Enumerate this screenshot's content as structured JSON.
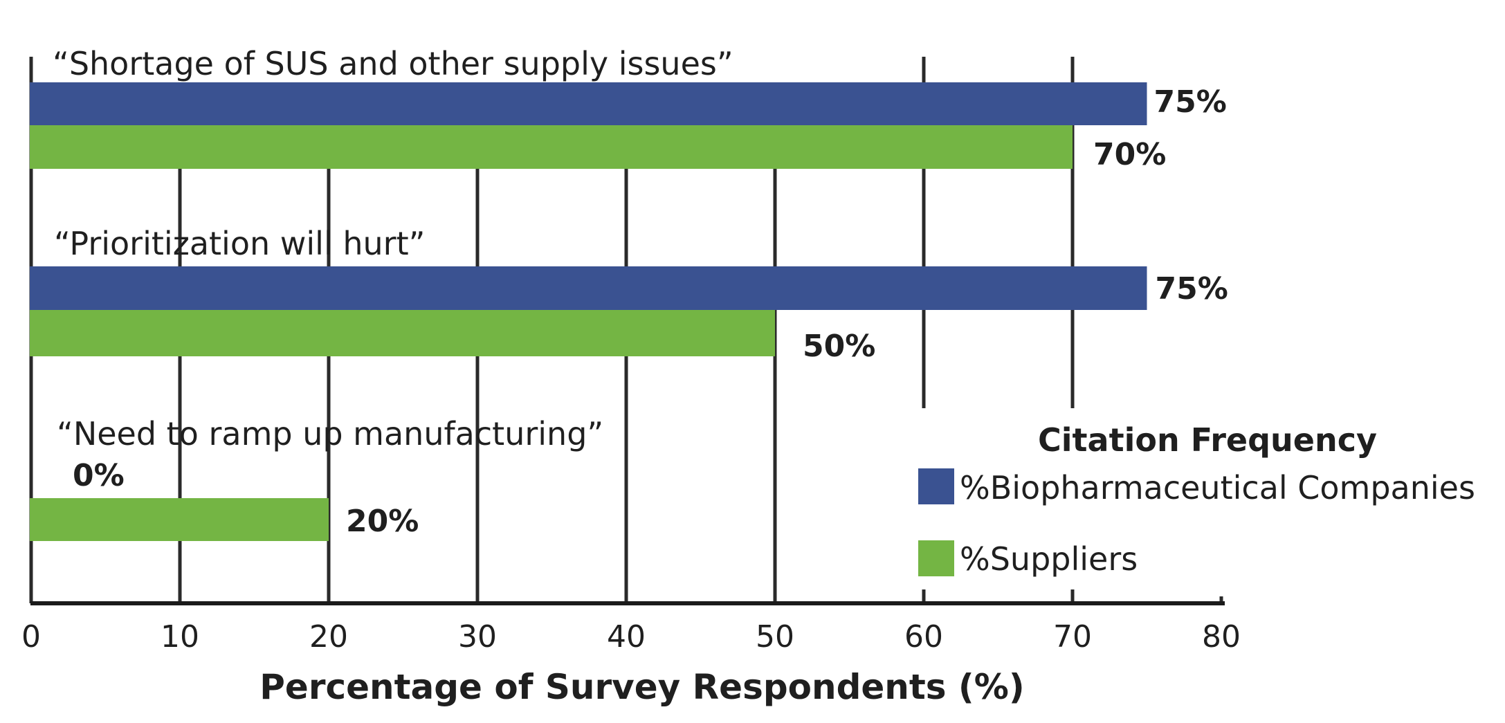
{
  "chart_data": {
    "type": "bar",
    "orientation": "horizontal",
    "categories": [
      "“Shortage of SUS and other supply issues”",
      "“Prioritization will hurt”",
      "“Need to ramp up manufacturing”"
    ],
    "series": [
      {
        "name": "%Biopharmaceutical Companies",
        "color": "#3a5291",
        "values": [
          75,
          75,
          0
        ],
        "labels": [
          "75%",
          "75%",
          "0%"
        ]
      },
      {
        "name": "%Suppliers",
        "color": "#74b544",
        "values": [
          70,
          50,
          20
        ],
        "labels": [
          "70%",
          "50%",
          "20%"
        ]
      }
    ],
    "xlabel": "Percentage of Survey Respondents (%)",
    "ylabel": "",
    "xlim": [
      0,
      80
    ],
    "xticks": [
      0,
      10,
      20,
      30,
      40,
      50,
      60,
      70,
      80
    ],
    "xtick_labels": [
      "0",
      "10",
      "20",
      "30",
      "40",
      "50",
      "60",
      "70",
      "80"
    ],
    "grid": true,
    "legend": {
      "title": "Citation Frequency",
      "position": "bottom-right",
      "entries": [
        "%Biopharmaceutical Companies",
        "%Suppliers"
      ]
    }
  }
}
